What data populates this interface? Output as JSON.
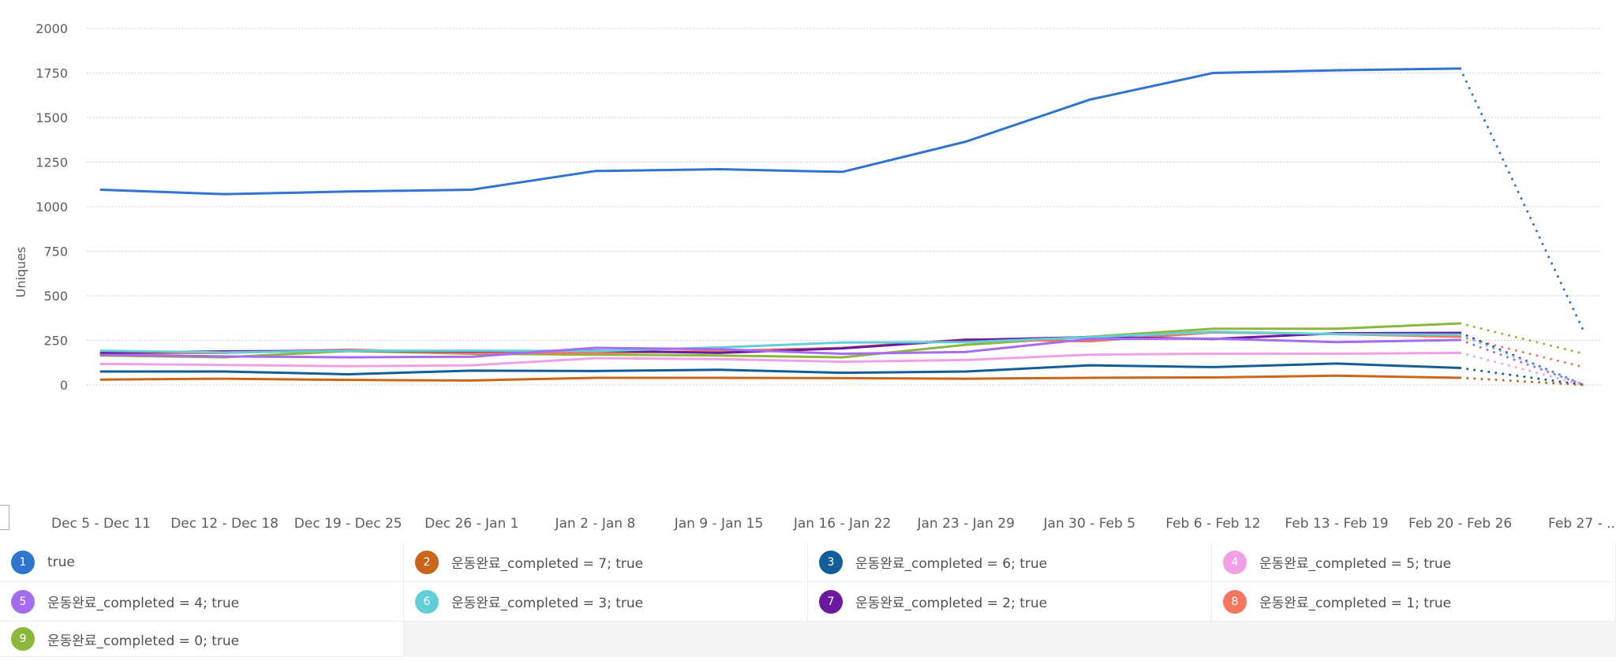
{
  "chart_data": {
    "type": "line",
    "title": "",
    "xlabel": "",
    "ylabel": "Uniques",
    "ylim": [
      0,
      2000
    ],
    "yticks": [
      0,
      250,
      500,
      750,
      1000,
      1250,
      1500,
      1750,
      2000
    ],
    "grid": true,
    "legend_position": "bottom",
    "categories": [
      "Dec 5 - Dec 11",
      "Dec 12 - Dec 18",
      "Dec 19 - Dec 25",
      "Dec 26 - Jan 1",
      "Jan 2 - Jan 8",
      "Jan 9 - Jan 15",
      "Jan 16 - Jan 22",
      "Jan 23 - Jan 29",
      "Jan 30 - Feb 5",
      "Feb 6 - Feb 12",
      "Feb 13 - Feb 19",
      "Feb 20 - Feb 26",
      "Feb 27 - ..."
    ],
    "partial_last_period": true,
    "series": [
      {
        "id": 1,
        "name": "true",
        "color": "#2f74d0",
        "values": [
          1095,
          1070,
          1085,
          1095,
          1200,
          1210,
          1195,
          1365,
          1600,
          1750,
          1765,
          1775,
          300
        ]
      },
      {
        "id": 2,
        "name": "운동완료_completed = 7; true",
        "color": "#c9661a",
        "values": [
          30,
          35,
          28,
          25,
          40,
          40,
          38,
          35,
          40,
          42,
          52,
          40,
          0
        ]
      },
      {
        "id": 3,
        "name": "운동완료_completed = 6; true",
        "color": "#135e96",
        "values": [
          75,
          75,
          60,
          80,
          78,
          85,
          68,
          75,
          110,
          100,
          120,
          95,
          0
        ]
      },
      {
        "id": 4,
        "name": "운동완료_completed = 5; true",
        "color": "#f0a1e6",
        "values": [
          118,
          112,
          105,
          110,
          150,
          145,
          130,
          140,
          170,
          175,
          175,
          180,
          0
        ]
      },
      {
        "id": 5,
        "name": "운동완료_completed = 4; true",
        "color": "#a66cf0",
        "values": [
          168,
          160,
          155,
          158,
          208,
          200,
          175,
          185,
          258,
          260,
          240,
          252,
          0
        ]
      },
      {
        "id": 6,
        "name": "운동완료_completed = 3; true",
        "color": "#62cfd6",
        "values": [
          192,
          182,
          192,
          192,
          190,
          210,
          238,
          240,
          268,
          298,
          285,
          282,
          0
        ]
      },
      {
        "id": 7,
        "name": "운동완료_completed = 2; true",
        "color": "#6b1aa0",
        "values": [
          180,
          188,
          192,
          188,
          192,
          180,
          205,
          252,
          268,
          258,
          290,
          292,
          0
        ]
      },
      {
        "id": 8,
        "name": "운동완료_completed = 1; true",
        "color": "#f2775e",
        "values": [
          175,
          180,
          198,
          178,
          180,
          190,
          208,
          255,
          245,
          295,
          285,
          270,
          100
        ]
      },
      {
        "id": 9,
        "name": "운동완료_completed = 0; true",
        "color": "#8db63c",
        "values": [
          165,
          155,
          190,
          175,
          170,
          165,
          155,
          225,
          270,
          315,
          315,
          345,
          175
        ]
      }
    ]
  },
  "legend": {
    "items": [
      {
        "badge": "1",
        "label": "true",
        "color": "#2f74d0"
      },
      {
        "badge": "2",
        "label": "운동완료_completed = 7; true",
        "color": "#c9661a"
      },
      {
        "badge": "3",
        "label": "운동완료_completed = 6; true",
        "color": "#135e96"
      },
      {
        "badge": "4",
        "label": "운동완료_completed = 5; true",
        "color": "#f0a1e6"
      },
      {
        "badge": "5",
        "label": "운동완료_completed = 4; true",
        "color": "#a66cf0"
      },
      {
        "badge": "6",
        "label": "운동완료_completed = 3; true",
        "color": "#62cfd6"
      },
      {
        "badge": "7",
        "label": "운동완료_completed = 2; true",
        "color": "#6b1aa0"
      },
      {
        "badge": "8",
        "label": "운동완료_completed = 1; true",
        "color": "#f2775e"
      },
      {
        "badge": "9",
        "label": "운동완료_completed = 0; true",
        "color": "#8db63c"
      }
    ]
  }
}
